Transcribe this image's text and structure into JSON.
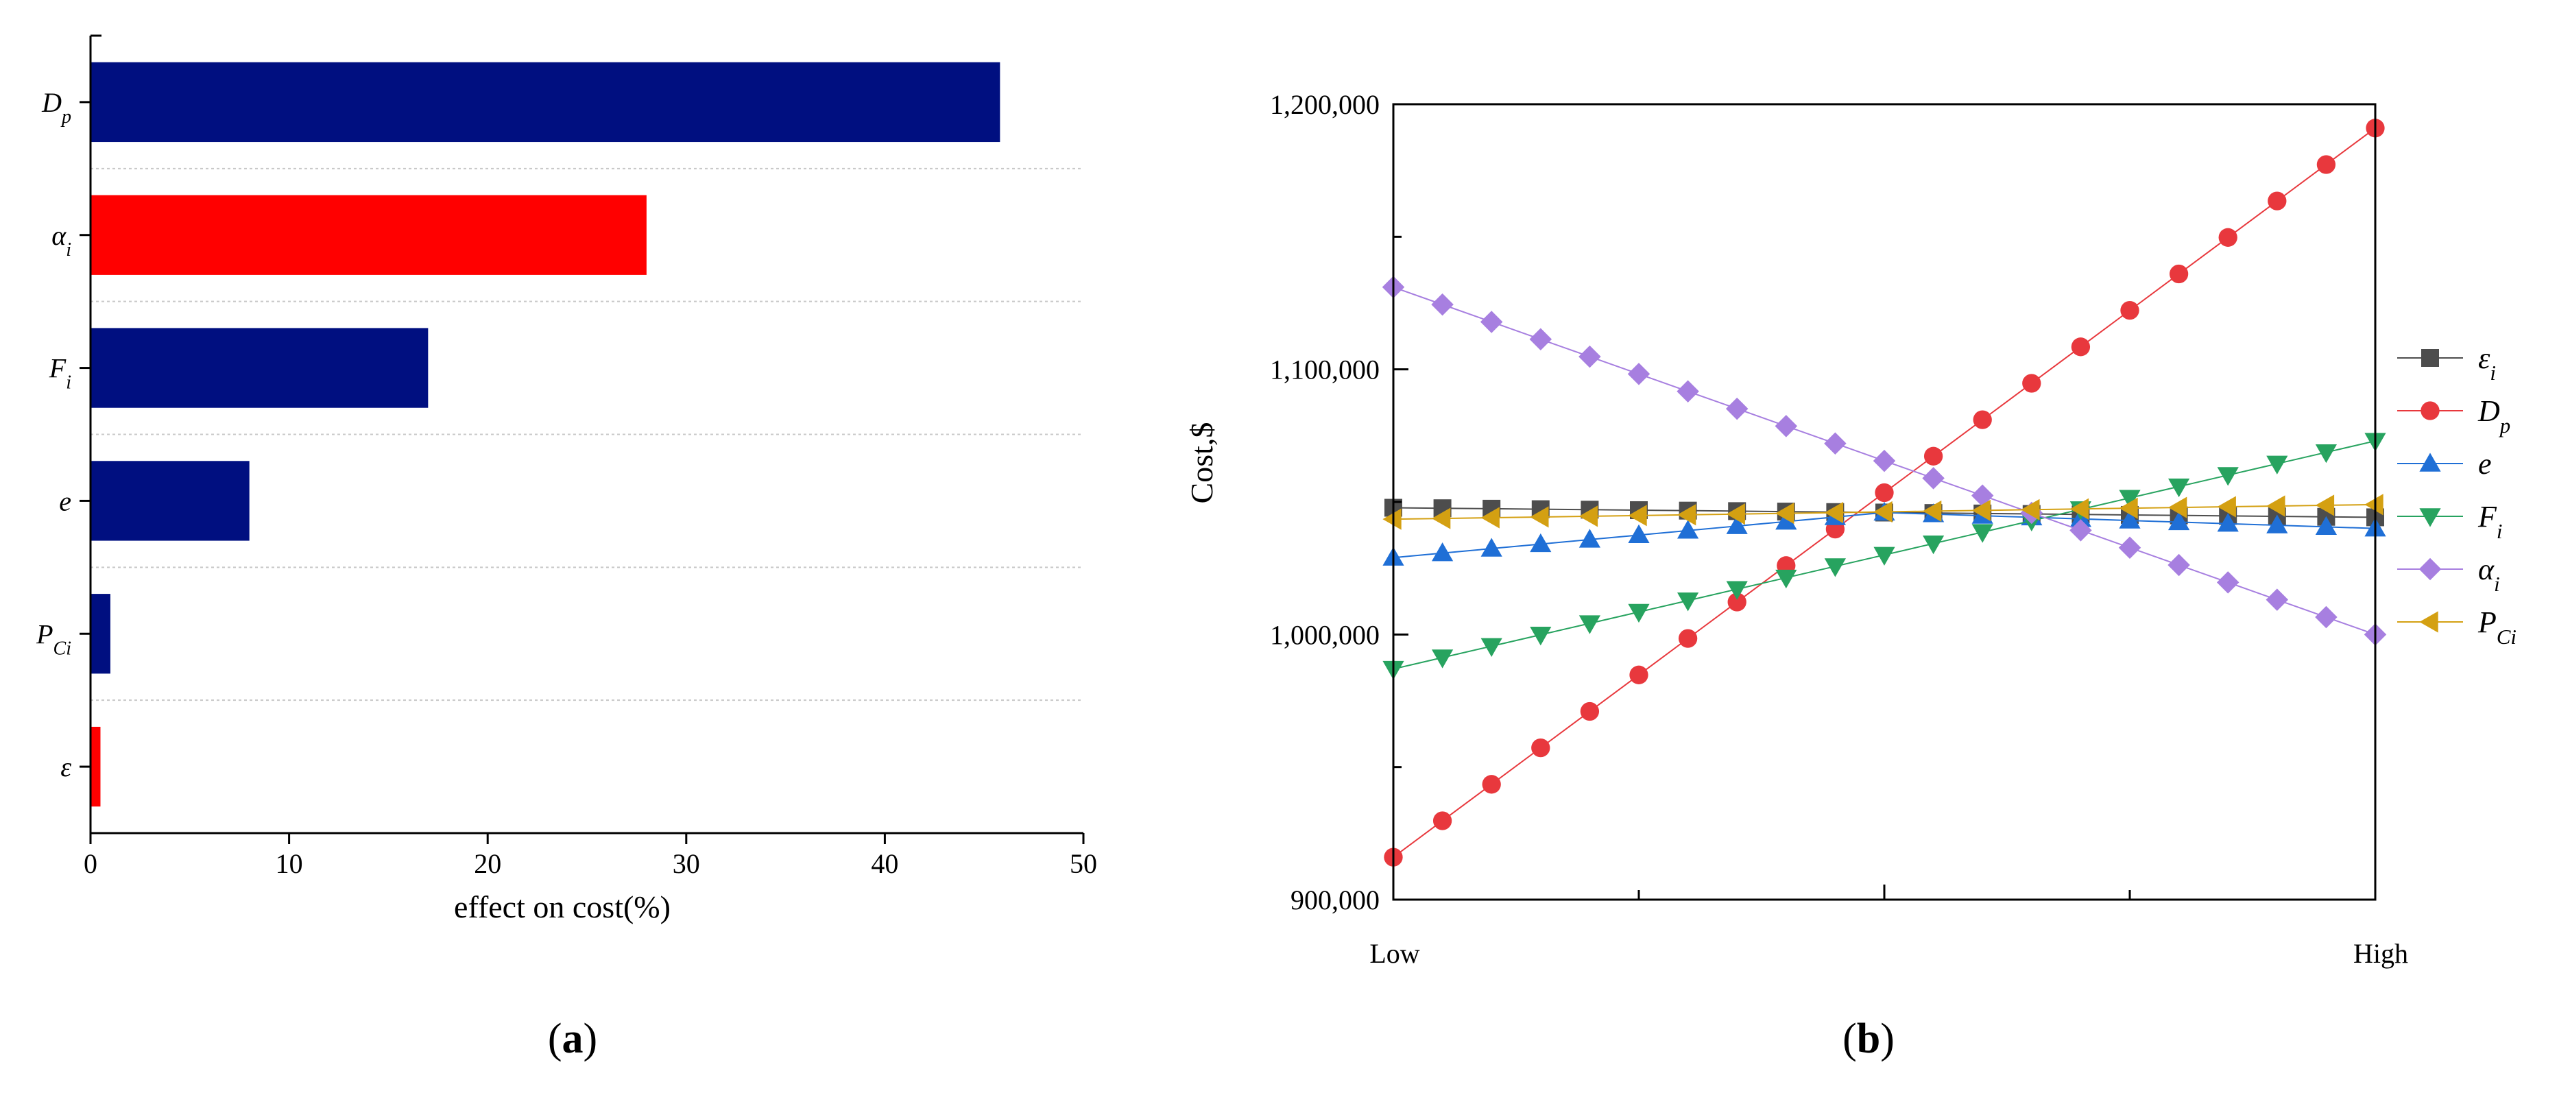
{
  "chart_data": [
    {
      "id": "a",
      "type": "bar",
      "orientation": "horizontal",
      "panel_label_open": "(",
      "panel_label_letter": "a",
      "panel_label_close": ")",
      "xlabel": "effect on cost(%)",
      "xlim": [
        0,
        50
      ],
      "xticks": [
        "0",
        "10",
        "20",
        "30",
        "40",
        "50"
      ],
      "grid": "horizontal dotted between bars",
      "bars": [
        {
          "label": "D",
          "sub": "p",
          "value": 45.8,
          "color": "#000f80"
        },
        {
          "label": "α",
          "sub": "i",
          "value": 28.0,
          "color": "#ff0000"
        },
        {
          "label": "F",
          "sub": "i",
          "value": 17.0,
          "color": "#000f80"
        },
        {
          "label": "e",
          "sub": "",
          "value": 8.0,
          "color": "#000f80"
        },
        {
          "label": "P",
          "sub": "Ci",
          "value": 1.0,
          "color": "#000f80"
        },
        {
          "label": "ε",
          "sub": "",
          "value": 0.5,
          "color": "#ff0000"
        }
      ]
    },
    {
      "id": "b",
      "type": "line",
      "panel_label_open": "(",
      "panel_label_letter": "b",
      "panel_label_close": ")",
      "ylabel": "Cost,$",
      "ylim": [
        900000,
        1200000
      ],
      "yticks": [
        "900,000",
        "1,000,000",
        "1,100,000",
        "1,200,000"
      ],
      "xlim": [
        0,
        20
      ],
      "xlabel_low": "Low",
      "xlabel_high": "High",
      "legend_position": "right",
      "points_per_series": 21,
      "series": [
        {
          "name": "ε",
          "sub": "i",
          "marker": "square",
          "color": "#4d4d4d",
          "line_color": "#4d4d4d",
          "start": 1047800,
          "end": 1044200
        },
        {
          "name": "D",
          "sub": "p",
          "marker": "circle",
          "color": "#e8383d",
          "line_color": "#e8383d",
          "start": 916000,
          "end": 1191000
        },
        {
          "name": "e",
          "sub": "",
          "marker": "triangle-up",
          "color": "#1f6fd6",
          "line_color": "#1f6fd6",
          "start": 1029000,
          "end": 1040000,
          "peak": 1046000
        },
        {
          "name": "F",
          "sub": "i",
          "marker": "triangle-down",
          "color": "#27a35f",
          "line_color": "#27a35f",
          "start": 987000,
          "end": 1073000
        },
        {
          "name": "α",
          "sub": "i",
          "marker": "diamond",
          "color": "#a77fe0",
          "line_color": "#a77fe0",
          "start": 1131000,
          "end": 1000000
        },
        {
          "name": "P",
          "sub": "Ci",
          "marker": "triangle-left",
          "color": "#d4a012",
          "line_color": "#d4a012",
          "start": 1043500,
          "end": 1049000
        }
      ]
    }
  ]
}
